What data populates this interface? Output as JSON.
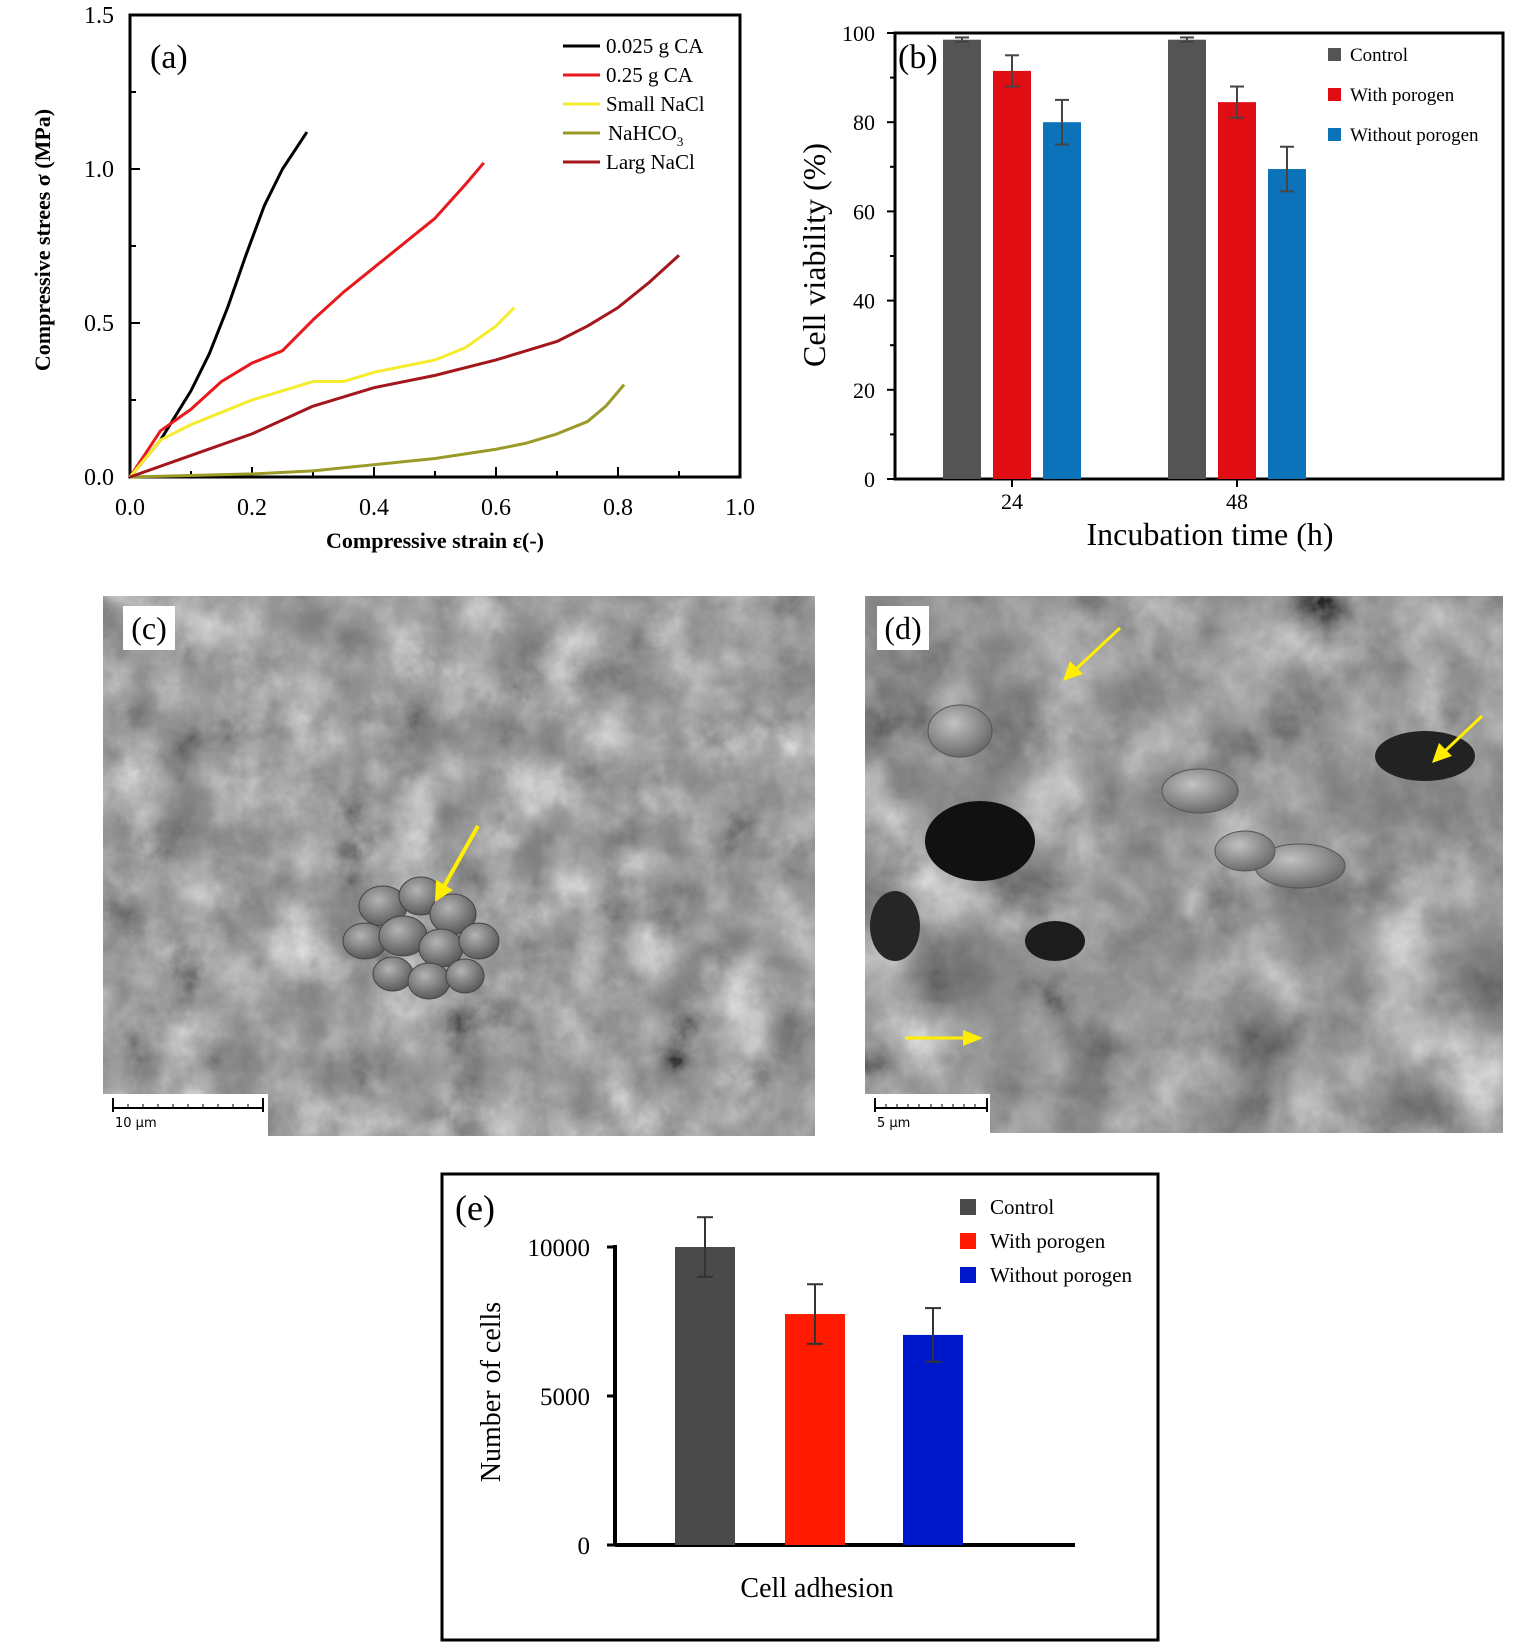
{
  "panels": {
    "c": {
      "label": "(c)",
      "scale_label": "10 μm"
    },
    "d": {
      "label": "(d)",
      "scale_label": "5 μm"
    }
  },
  "chart_data": [
    {
      "panel": "(a)",
      "type": "line",
      "xlabel": "Compressive strain ε(-)",
      "ylabel": "Compressive strees σ (MPa)",
      "xlim": [
        0,
        1.0
      ],
      "ylim": [
        0,
        1.5
      ],
      "xticks": [
        "0.0",
        "0.2",
        "0.4",
        "0.6",
        "0.8",
        "1.0"
      ],
      "yticks": [
        "0.0",
        "0.5",
        "1.0",
        "1.5"
      ],
      "legend_position": "top-right",
      "series": [
        {
          "name": "0.025 g CA",
          "color": "#000000",
          "x": [
            0,
            0.05,
            0.1,
            0.13,
            0.16,
            0.19,
            0.22,
            0.25,
            0.27,
            0.29
          ],
          "y": [
            0,
            0.12,
            0.28,
            0.4,
            0.55,
            0.72,
            0.88,
            1.0,
            1.06,
            1.12
          ]
        },
        {
          "name": "0.25 g CA",
          "color": "#e8191c",
          "x": [
            0,
            0.05,
            0.1,
            0.15,
            0.2,
            0.25,
            0.3,
            0.35,
            0.4,
            0.45,
            0.5,
            0.55,
            0.58
          ],
          "y": [
            0,
            0.15,
            0.22,
            0.31,
            0.37,
            0.41,
            0.51,
            0.6,
            0.68,
            0.76,
            0.84,
            0.95,
            1.02
          ]
        },
        {
          "name": "Small NaCl",
          "color": "#f4ec2c",
          "x": [
            0,
            0.05,
            0.1,
            0.15,
            0.2,
            0.25,
            0.3,
            0.35,
            0.4,
            0.45,
            0.5,
            0.55,
            0.6,
            0.63
          ],
          "y": [
            0,
            0.12,
            0.17,
            0.21,
            0.25,
            0.28,
            0.31,
            0.31,
            0.34,
            0.36,
            0.38,
            0.42,
            0.49,
            0.55
          ]
        },
        {
          "name": "NaHCO3",
          "color": "#9a9a28",
          "x": [
            0,
            0.1,
            0.2,
            0.3,
            0.4,
            0.5,
            0.6,
            0.65,
            0.7,
            0.75,
            0.78,
            0.81
          ],
          "y": [
            0,
            0.005,
            0.01,
            0.02,
            0.04,
            0.06,
            0.09,
            0.11,
            0.14,
            0.18,
            0.23,
            0.3
          ]
        },
        {
          "name": "Larg NaCl",
          "color": "#a3161c",
          "x": [
            0,
            0.1,
            0.2,
            0.3,
            0.4,
            0.5,
            0.6,
            0.7,
            0.75,
            0.8,
            0.85,
            0.9
          ],
          "y": [
            0,
            0.07,
            0.14,
            0.23,
            0.29,
            0.33,
            0.38,
            0.44,
            0.49,
            0.55,
            0.63,
            0.72
          ]
        }
      ]
    },
    {
      "panel": "(b)",
      "type": "bar",
      "xlabel": "Incubation time (h)",
      "ylabel": "Cell viability (%)",
      "categories": [
        "24",
        "48"
      ],
      "ylim": [
        0,
        100
      ],
      "yticks": [
        "0",
        "20",
        "40",
        "60",
        "80",
        "100"
      ],
      "legend_position": "top-right",
      "series": [
        {
          "name": "Control",
          "color": "#545454",
          "values": [
            98.5,
            98.5
          ],
          "errors": [
            0.5,
            0.5
          ]
        },
        {
          "name": "With porogen",
          "color": "#e00e12",
          "values": [
            91.5,
            84.5
          ],
          "errors": [
            3.5,
            3.5
          ]
        },
        {
          "name": "Without porogen",
          "color": "#0c73bb",
          "values": [
            80,
            69.5
          ],
          "errors": [
            5,
            5
          ]
        }
      ]
    },
    {
      "panel": "(e)",
      "type": "bar",
      "xlabel": "Cell adhesion",
      "ylabel": "Number of cells",
      "ylim": [
        0,
        10000
      ],
      "yticks": [
        "0",
        "5000",
        "10000"
      ],
      "legend_position": "top-right",
      "series": [
        {
          "name": "Control",
          "color": "#4a4a4a",
          "value": 10000,
          "error": 1000
        },
        {
          "name": "With porogen",
          "color": "#ff1a00",
          "value": 7750,
          "error": 1000
        },
        {
          "name": "Without porogen",
          "color": "#0018cc",
          "value": 7050,
          "error": 900
        }
      ]
    }
  ]
}
